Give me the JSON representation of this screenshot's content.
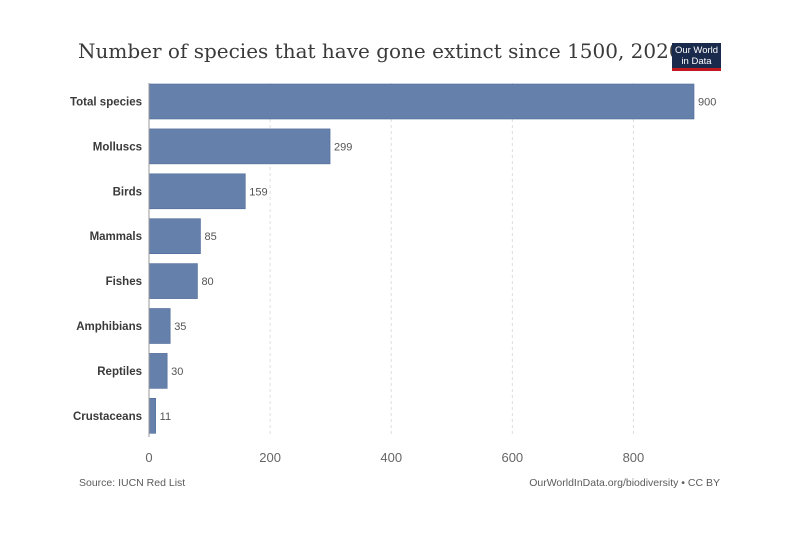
{
  "header": {
    "title": "Number of species that have gone extinct since 1500, 2020",
    "logo_line1": "Our World",
    "logo_line2": "in Data"
  },
  "footer": {
    "source": "Source: IUCN Red List",
    "credit": "OurWorldInData.org/biodiversity • CC BY"
  },
  "colors": {
    "bar": "#6580ab",
    "bar_stroke": "#4e6a99",
    "grid": "#dddddd",
    "label": "#3a3a3a",
    "tick": "#666666",
    "logo_bg": "#1a2a4c",
    "logo_accent": "#c0181f"
  },
  "chart_data": {
    "type": "bar",
    "orientation": "horizontal",
    "categories": [
      "Total species",
      "Molluscs",
      "Birds",
      "Mammals",
      "Fishes",
      "Amphibians",
      "Reptiles",
      "Crustaceans"
    ],
    "values": [
      900,
      299,
      159,
      85,
      80,
      35,
      30,
      11
    ],
    "xlim": [
      0,
      900
    ],
    "xticks": [
      0,
      200,
      400,
      600,
      800
    ],
    "grid": "vertical dashed",
    "data_labels": true
  }
}
